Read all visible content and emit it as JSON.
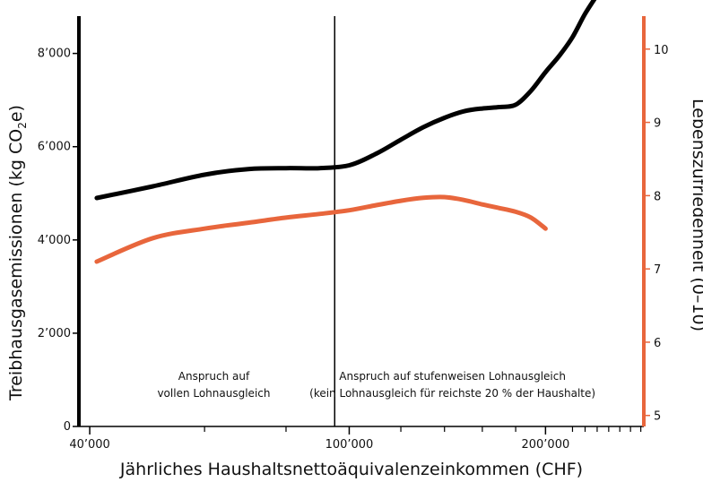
{
  "chart_data": {
    "type": "line",
    "xlabel": "Jährliches Haushaltsnettoäquivalenzeinkommen (CHF)",
    "ylabel": "Treibhausgasemissionen (kg CO",
    "ylabel_sub": "2",
    "ylabel_end": "e)",
    "y2label": "Lebenszufriedenheit (0–10)",
    "x_scale": "log",
    "xlim": [
      38500,
      283000
    ],
    "ylim": [
      0,
      8800
    ],
    "y2lim": [
      4.85,
      10.45
    ],
    "x_ticks": [
      {
        "value": 40000,
        "label": "40’000"
      },
      {
        "value": 100000,
        "label": "100’000"
      },
      {
        "value": 200000,
        "label": "200’000"
      }
    ],
    "x_minor_ticks": [
      60000,
      80000,
      120000,
      140000,
      160000,
      180000,
      220000,
      230000,
      240000,
      250000,
      260000,
      270000,
      280000
    ],
    "y_ticks": [
      {
        "value": 0,
        "label": "0"
      },
      {
        "value": 2000,
        "label": "2’000"
      },
      {
        "value": 4000,
        "label": "4’000"
      },
      {
        "value": 6000,
        "label": "6’000"
      },
      {
        "value": 8000,
        "label": "8’000"
      }
    ],
    "y2_ticks": [
      {
        "value": 5,
        "label": "5"
      },
      {
        "value": 6,
        "label": "6"
      },
      {
        "value": 7,
        "label": "7"
      },
      {
        "value": 8,
        "label": "8"
      },
      {
        "value": 9,
        "label": "9"
      },
      {
        "value": 10,
        "label": "10"
      }
    ],
    "series": [
      {
        "axis": "left",
        "color": "#000000",
        "x": [
          41000,
          50000,
          60000,
          70000,
          80000,
          90000,
          100000,
          110000,
          120000,
          130000,
          140000,
          150000,
          160000,
          170000,
          180000,
          190000,
          200000,
          210000,
          220000,
          230000,
          240000
        ],
        "values": [
          4900,
          5150,
          5400,
          5520,
          5540,
          5540,
          5600,
          5850,
          6150,
          6420,
          6620,
          6760,
          6820,
          6850,
          6900,
          7200,
          7600,
          7950,
          8350,
          8850,
          9250
        ]
      },
      {
        "axis": "right",
        "color": "#e8663c",
        "x": [
          41000,
          50000,
          60000,
          70000,
          80000,
          90000,
          100000,
          110000,
          120000,
          130000,
          140000,
          150000,
          160000,
          170000,
          180000,
          190000,
          200000
        ],
        "values": [
          7.1,
          7.42,
          7.55,
          7.63,
          7.7,
          7.75,
          7.8,
          7.87,
          7.93,
          7.97,
          7.98,
          7.94,
          7.88,
          7.83,
          7.78,
          7.7,
          7.55
        ]
      }
    ],
    "reference_lines": [
      {
        "x": 95000,
        "color": "#000000"
      }
    ],
    "annotations": [
      {
        "lines": [
          "Anspruch auf",
          "vollen Lohnausgleich"
        ],
        "x": 62000,
        "y": 1000
      },
      {
        "lines": [
          "Anspruch auf stufenweisen Lohnausgleich",
          "(kein Lohnausgleich für reichste 20 % der Haushalte)"
        ],
        "x": 144000,
        "y": 1000
      }
    ],
    "colors": {
      "left_axis": "#000000",
      "right_axis": "#e8663c"
    }
  }
}
